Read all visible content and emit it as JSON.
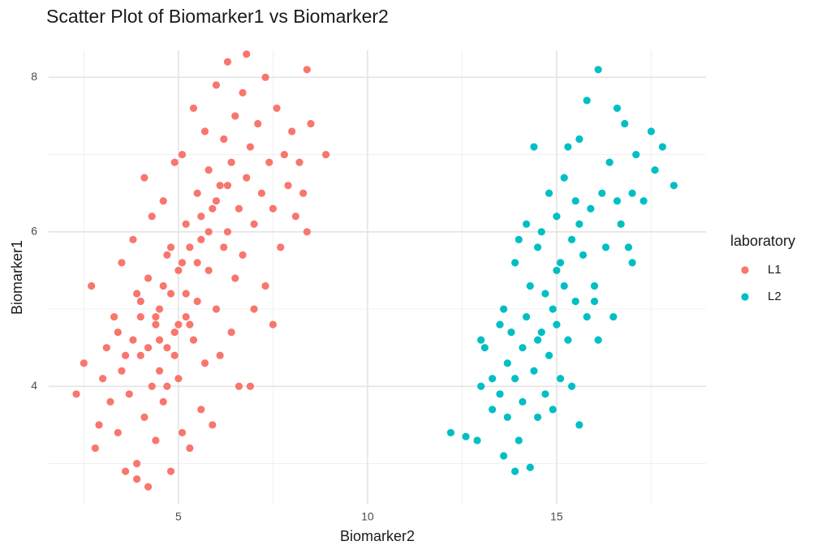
{
  "chart_data": {
    "type": "scatter",
    "title": "Scatter Plot of Biomarker1 vs Biomarker2",
    "x_label": "Biomarker2",
    "y_label": "Biomarker1",
    "legend_title": "laboratory",
    "legend": "right",
    "grid": true,
    "xlim": [
      1.57,
      18.95
    ],
    "xticks": [
      5,
      10,
      15
    ],
    "x_minor_ticks": [
      2.5,
      7.5,
      12.5,
      17.5
    ],
    "ylim": [
      2.47,
      8.35
    ],
    "yticks": [
      4,
      6,
      8
    ],
    "y_minor_ticks": [
      3,
      5,
      7
    ],
    "series": [
      {
        "name": "L1",
        "color": "#F8766D",
        "x": [
          2.3,
          2.5,
          2.7,
          2.8,
          2.9,
          3.0,
          3.1,
          3.2,
          3.3,
          3.4,
          3.5,
          3.5,
          3.6,
          3.7,
          3.8,
          3.8,
          3.9,
          3.9,
          4.0,
          4.0,
          4.1,
          4.1,
          4.2,
          4.2,
          4.3,
          4.3,
          4.4,
          4.4,
          4.5,
          4.5,
          4.6,
          4.6,
          4.7,
          4.7,
          4.8,
          4.8,
          4.9,
          4.9,
          5.0,
          5.0,
          5.1,
          5.1,
          5.2,
          5.2,
          5.3,
          5.3,
          5.4,
          5.4,
          5.5,
          5.5,
          5.6,
          5.6,
          5.7,
          5.7,
          5.8,
          5.8,
          5.9,
          5.9,
          6.0,
          6.0,
          6.1,
          6.1,
          6.2,
          6.2,
          6.3,
          6.3,
          6.4,
          6.4,
          6.5,
          6.5,
          6.6,
          6.6,
          6.7,
          6.7,
          6.8,
          6.8,
          6.9,
          6.9,
          7.0,
          7.0,
          7.1,
          7.2,
          7.3,
          7.3,
          7.4,
          7.5,
          7.5,
          7.6,
          7.7,
          7.8,
          7.9,
          8.0,
          8.1,
          8.2,
          8.3,
          8.4,
          8.4,
          8.5,
          8.9,
          4.2,
          4.6,
          4.9,
          5.1,
          5.3,
          4.4,
          4.8,
          5.2,
          4.0,
          5.5,
          4.7,
          5.6,
          3.6,
          3.4,
          3.9,
          5.8,
          6.0,
          6.3,
          5.0,
          4.5
        ],
        "values": [
          3.9,
          4.3,
          5.3,
          3.2,
          3.5,
          4.1,
          4.5,
          3.8,
          4.9,
          3.4,
          5.6,
          4.2,
          2.9,
          3.9,
          5.9,
          4.6,
          3.0,
          2.8,
          5.1,
          4.4,
          6.7,
          3.6,
          5.4,
          2.7,
          4.0,
          6.2,
          4.8,
          3.3,
          5.0,
          4.2,
          6.4,
          3.8,
          5.7,
          4.5,
          2.9,
          5.2,
          6.9,
          4.7,
          5.5,
          4.1,
          7.0,
          3.4,
          6.1,
          4.9,
          3.2,
          5.8,
          7.6,
          4.6,
          6.5,
          5.1,
          3.7,
          5.9,
          7.3,
          4.3,
          6.8,
          5.5,
          3.5,
          6.3,
          7.9,
          5.0,
          6.6,
          4.4,
          7.2,
          5.8,
          8.2,
          6.0,
          4.7,
          6.9,
          7.5,
          5.4,
          6.3,
          4.0,
          7.8,
          5.7,
          8.3,
          6.7,
          4.0,
          7.1,
          6.1,
          5.0,
          7.4,
          6.5,
          5.3,
          8.0,
          6.9,
          4.8,
          6.3,
          7.6,
          5.8,
          7.0,
          6.6,
          7.3,
          6.2,
          6.9,
          6.5,
          8.1,
          6.0,
          7.4,
          7.0,
          4.5,
          5.3,
          4.4,
          5.6,
          4.8,
          4.9,
          5.8,
          5.2,
          4.9,
          5.6,
          4.0,
          6.2,
          4.4,
          4.7,
          5.2,
          6.0,
          6.4,
          6.6,
          4.8,
          4.6
        ]
      },
      {
        "name": "L2",
        "color": "#00BFC4",
        "x": [
          12.2,
          12.6,
          12.9,
          13.0,
          13.0,
          13.1,
          13.3,
          13.3,
          13.5,
          13.5,
          13.6,
          13.6,
          13.7,
          13.7,
          13.8,
          13.9,
          13.9,
          13.9,
          14.0,
          14.0,
          14.1,
          14.1,
          14.2,
          14.2,
          14.3,
          14.3,
          14.4,
          14.4,
          14.5,
          14.5,
          14.6,
          14.6,
          14.7,
          14.7,
          14.8,
          14.8,
          14.9,
          14.9,
          15.0,
          15.0,
          15.1,
          15.1,
          15.2,
          15.2,
          15.3,
          15.3,
          15.4,
          15.4,
          15.5,
          15.5,
          15.6,
          15.6,
          15.7,
          15.8,
          15.8,
          15.9,
          16.0,
          16.1,
          16.1,
          16.2,
          16.3,
          16.4,
          16.5,
          16.6,
          16.7,
          16.8,
          16.9,
          17.0,
          17.1,
          17.3,
          17.5,
          17.6,
          17.8,
          18.1,
          16.0,
          15.0,
          14.5,
          16.6,
          17.0,
          15.6
        ],
        "values": [
          3.4,
          3.35,
          3.3,
          4.0,
          4.6,
          4.5,
          3.7,
          4.1,
          3.9,
          4.8,
          3.1,
          5.0,
          3.6,
          4.3,
          4.7,
          2.9,
          5.6,
          4.1,
          3.3,
          5.9,
          4.5,
          3.8,
          4.9,
          6.1,
          2.95,
          5.3,
          4.2,
          7.1,
          5.8,
          3.6,
          4.7,
          6.0,
          5.2,
          3.9,
          6.5,
          4.4,
          5.0,
          3.7,
          6.2,
          4.8,
          5.6,
          4.1,
          6.7,
          5.3,
          7.1,
          4.6,
          5.9,
          4.0,
          6.4,
          5.1,
          7.2,
          3.5,
          5.7,
          7.7,
          4.9,
          6.3,
          5.3,
          8.1,
          4.6,
          6.5,
          5.8,
          6.9,
          4.9,
          7.6,
          6.1,
          7.4,
          5.8,
          6.5,
          7.0,
          6.4,
          7.3,
          6.8,
          7.1,
          6.6,
          5.1,
          5.5,
          4.6,
          6.4,
          5.6,
          6.1
        ]
      }
    ]
  }
}
